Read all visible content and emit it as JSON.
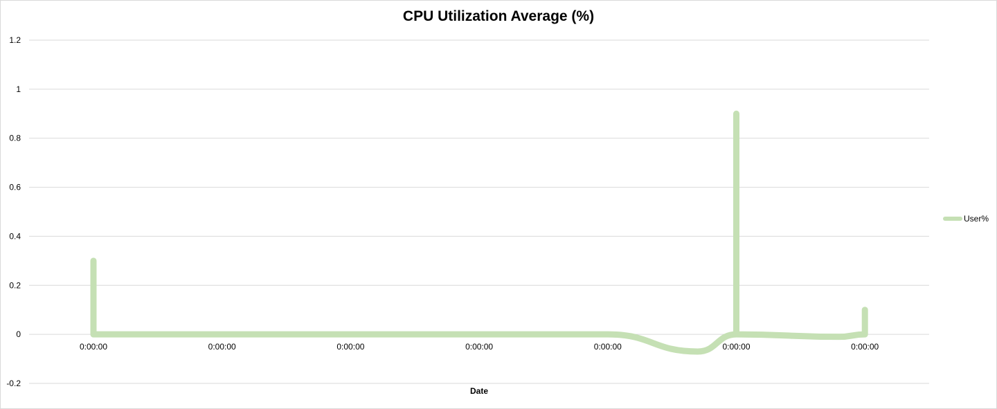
{
  "chart_data": {
    "type": "line",
    "title": "CPU Utilization Average (%)",
    "xlabel": "Date",
    "ylabel": "",
    "ylim": [
      -0.2,
      1.2
    ],
    "yticks": [
      "1.2",
      "1",
      "0.8",
      "0.6",
      "0.4",
      "0.2",
      "0",
      "-0.2"
    ],
    "xtick_labels": [
      "0:00:00",
      "0:00:00",
      "0:00:00",
      "0:00:00",
      "0:00:00",
      "0:00:00",
      "0:00:00"
    ],
    "grid": true,
    "legend_position": "right",
    "series": [
      {
        "name": "User%",
        "color": "#c5e0b4",
        "points": [
          {
            "x": 0,
            "y": 0.3
          },
          {
            "x": 0,
            "y": 0.0
          },
          {
            "x": 4,
            "y": 0.0
          },
          {
            "x": 4.7,
            "y": -0.07
          },
          {
            "x": 5,
            "y": 0.0
          },
          {
            "x": 5,
            "y": 0.9
          },
          {
            "x": 5,
            "y": 0.0
          },
          {
            "x": 5.8,
            "y": -0.01
          },
          {
            "x": 6,
            "y": 0.0
          },
          {
            "x": 6,
            "y": 0.1
          }
        ]
      }
    ]
  }
}
